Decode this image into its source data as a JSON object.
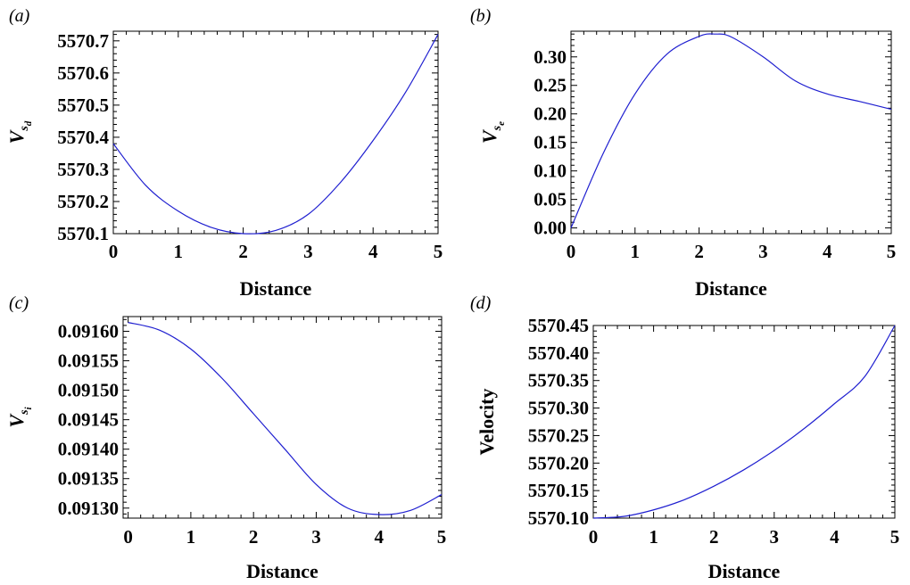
{
  "chart_data": [
    {
      "panel": "(a)",
      "type": "line",
      "title": "",
      "xlabel": "Distance",
      "ylabel": {
        "main": "V",
        "sub": "s",
        "subsub": "d"
      },
      "xlim": [
        0,
        5
      ],
      "ylim": [
        5570.1,
        5570.73
      ],
      "xticks": [
        0,
        1,
        2,
        3,
        4,
        5
      ],
      "xtick_labels": [
        "0",
        "1",
        "2",
        "3",
        "4",
        "5"
      ],
      "yticks": [
        5570.1,
        5570.2,
        5570.3,
        5570.4,
        5570.5,
        5570.6,
        5570.7
      ],
      "ytick_labels": [
        "5570.1",
        "5570.2",
        "5570.3",
        "5570.4",
        "5570.5",
        "5570.6",
        "5570.7"
      ],
      "color": "#1f1fd0",
      "series": [
        {
          "x": [
            0,
            0.5,
            1,
            1.5,
            2,
            2.5,
            3,
            3.5,
            4,
            4.5,
            5
          ],
          "y": [
            5570.38,
            5570.25,
            5570.17,
            5570.12,
            5570.1,
            5570.11,
            5570.16,
            5570.26,
            5570.39,
            5570.54,
            5570.72
          ]
        }
      ]
    },
    {
      "panel": "(b)",
      "type": "line",
      "title": "",
      "xlabel": "Distance",
      "ylabel": {
        "main": "V",
        "sub": "s",
        "subsub": "e"
      },
      "xlim": [
        0,
        5
      ],
      "ylim": [
        -0.01,
        0.345
      ],
      "xticks": [
        0,
        1,
        2,
        3,
        4,
        5
      ],
      "xtick_labels": [
        "0",
        "1",
        "2",
        "3",
        "4",
        "5"
      ],
      "yticks": [
        0,
        0.05,
        0.1,
        0.15,
        0.2,
        0.25,
        0.3
      ],
      "ytick_labels": [
        "0.00",
        "0.05",
        "0.10",
        "0.15",
        "0.20",
        "0.25",
        "0.30"
      ],
      "color": "#1f1fd0",
      "series": [
        {
          "x": [
            0,
            0.5,
            1,
            1.5,
            2,
            2.25,
            2.5,
            3,
            3.5,
            4,
            4.5,
            5
          ],
          "y": [
            0,
            0.13,
            0.235,
            0.305,
            0.336,
            0.34,
            0.335,
            0.3,
            0.258,
            0.235,
            0.222,
            0.208
          ]
        }
      ]
    },
    {
      "panel": "(c)",
      "type": "line",
      "title": "",
      "xlabel": "Distance",
      "ylabel": {
        "main": "V",
        "sub": "s",
        "subsub": "i"
      },
      "xlim": [
        -0.08,
        5
      ],
      "ylim": [
        0.091283,
        0.091625
      ],
      "xticks": [
        0,
        1,
        2,
        3,
        4,
        5
      ],
      "xtick_labels": [
        "0",
        "1",
        "2",
        "3",
        "4",
        "5"
      ],
      "yticks": [
        0.0913,
        0.09135,
        0.0914,
        0.09145,
        0.0915,
        0.09155,
        0.0916
      ],
      "ytick_labels": [
        "0.09130",
        "0.09135",
        "0.09140",
        "0.09145",
        "0.09150",
        "0.09155",
        "0.09160"
      ],
      "color": "#1f1fd0",
      "series": [
        {
          "x": [
            0,
            0.5,
            1,
            1.5,
            2,
            2.5,
            3,
            3.5,
            4,
            4.5,
            5
          ],
          "y": [
            0.091615,
            0.091602,
            0.09157,
            0.09152,
            0.09146,
            0.0914,
            0.09134,
            0.0913,
            0.091289,
            0.091296,
            0.091323
          ]
        }
      ]
    },
    {
      "panel": "(d)",
      "type": "line",
      "title": "",
      "xlabel": "Distance",
      "ylabel": {
        "main": "Velocity",
        "sub": "",
        "subsub": ""
      },
      "xlim": [
        0,
        5
      ],
      "ylim": [
        5570.1,
        5570.45
      ],
      "xticks": [
        0,
        1,
        2,
        3,
        4,
        5
      ],
      "xtick_labels": [
        "0",
        "1",
        "2",
        "3",
        "4",
        "5"
      ],
      "yticks": [
        5570.1,
        5570.15,
        5570.2,
        5570.25,
        5570.3,
        5570.35,
        5570.4,
        5570.45
      ],
      "ytick_labels": [
        "5570.10",
        "5570.15",
        "5570.20",
        "5570.25",
        "5570.30",
        "5570.35",
        "5570.40",
        "5570.45"
      ],
      "color": "#1f1fd0",
      "series": [
        {
          "x": [
            0,
            0.5,
            1,
            1.5,
            2,
            2.5,
            3,
            3.5,
            4,
            4.5,
            5
          ],
          "y": [
            5570.1,
            5570.103,
            5570.115,
            5570.133,
            5570.158,
            5570.188,
            5570.223,
            5570.263,
            5570.308,
            5570.357,
            5570.45
          ]
        }
      ]
    }
  ]
}
